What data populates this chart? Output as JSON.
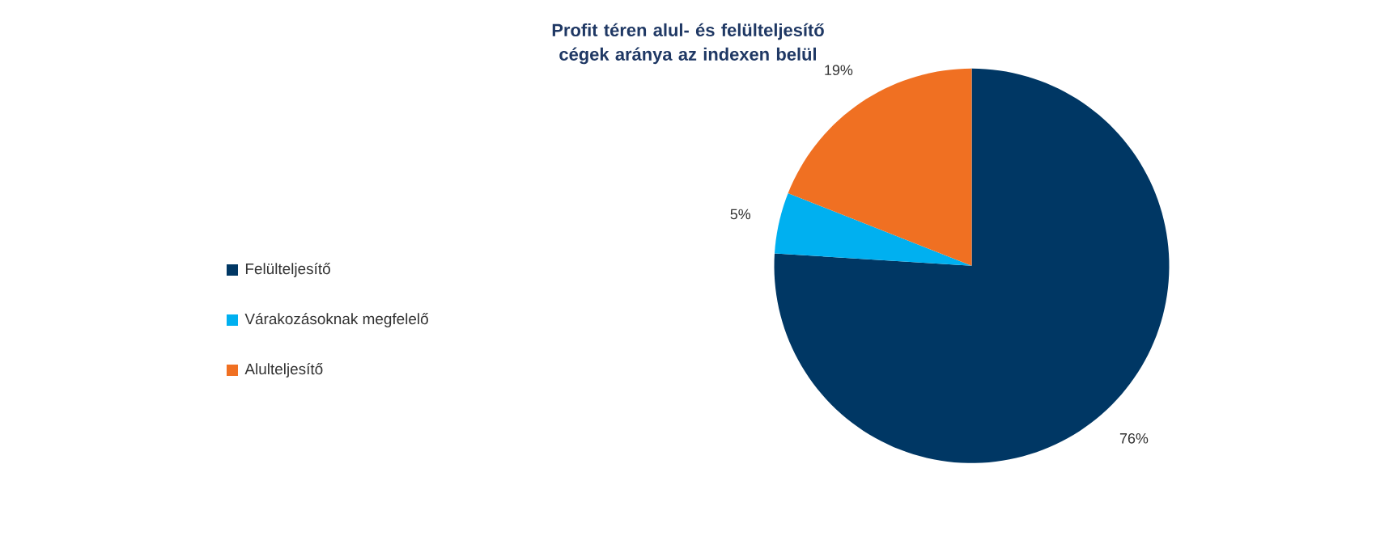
{
  "chart_data": {
    "type": "pie",
    "title": "Profit téren alul- és felülteljesítő cégek aránya az indexen belül",
    "categories": [
      "Felülteljesítő",
      "Várakozásoknak megfelelő",
      "Alulteljesítő"
    ],
    "values": [
      76,
      5,
      19
    ],
    "colors": [
      "#003764",
      "#00b0f0",
      "#f07022"
    ],
    "value_labels": [
      "76%",
      "5%",
      "19%"
    ],
    "legend": "left"
  }
}
